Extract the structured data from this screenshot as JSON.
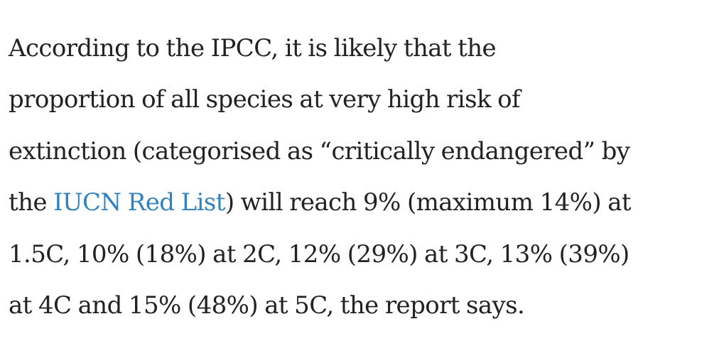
{
  "article": {
    "line1": "According to the IPCC, it is likely that the",
    "line2": "proportion of all species at very high risk of",
    "line3": "extinction (categorised as “critically endangered” by",
    "line4_before": "the ",
    "link_text": "IUCN Red List",
    "line4_after": ") will reach 9% (maximum 14%) at",
    "line5": "1.5C, 10% (18%) at 2C, 12% (29%) at 3C, 13% (39%)",
    "line6": "at 4C and 15% (48%) at 5C, the report says."
  },
  "colors": {
    "text": "#222222",
    "link": "#2f83c2",
    "background": "#ffffff"
  }
}
